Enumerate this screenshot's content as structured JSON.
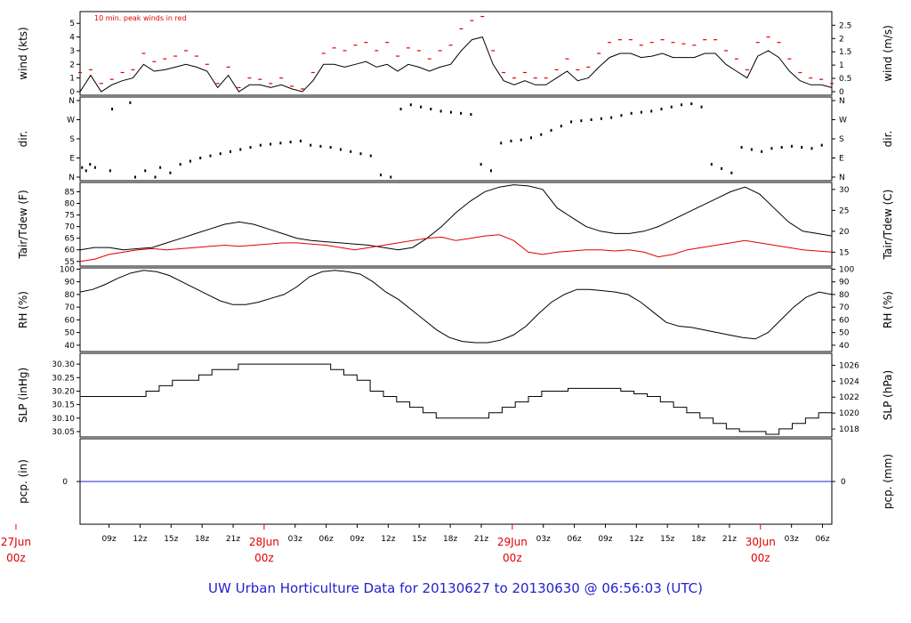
{
  "title": "UW Urban Horticulture Data for 20130627  to  20130630 @ 06:56:03  (UTC)",
  "colors": {
    "black": "#000000",
    "red": "#e00000",
    "blue": "#2222cc",
    "axis": "#000000"
  },
  "chart_data": {
    "type": "line",
    "x_range_hours": [
      0,
      75
    ],
    "time_axis": {
      "hour_ticks": [
        "09z",
        "12z",
        "15z",
        "18z",
        "21z",
        "03z",
        "06z",
        "09z",
        "12z",
        "15z",
        "18z",
        "21z",
        "03z",
        "06z",
        "09z",
        "12z",
        "15z",
        "18z",
        "21z",
        "03z",
        "06z"
      ],
      "day_labels": [
        {
          "date": "27Jun",
          "hour": "00z"
        },
        {
          "date": "28Jun",
          "hour": "00z"
        },
        {
          "date": "29Jun",
          "hour": "00z"
        },
        {
          "date": "30Jun",
          "hour": "00z"
        }
      ]
    },
    "panels": {
      "wind": {
        "ylabel_left": "wind (kts)",
        "ylabel_right": "wind (m/s)",
        "note": "10 min. peak winds in red",
        "ylim_left": [
          0,
          5.6
        ],
        "ticks_left": [
          "0",
          "1",
          "2",
          "3",
          "4",
          "5"
        ],
        "ylim_right": [
          0,
          2.88
        ],
        "ticks_right": [
          "0",
          "0.5",
          "1",
          "1.5",
          "2",
          "2.5"
        ],
        "series": [
          {
            "color": "black",
            "values": [
              0,
              1.2,
              0,
              0.5,
              0.8,
              1.0,
              2.0,
              1.5,
              1.6,
              1.8,
              2.0,
              1.8,
              1.5,
              0.3,
              1.2,
              0,
              0.5,
              0.5,
              0.3,
              0.5,
              0.2,
              0,
              0.8,
              2.0,
              2.0,
              1.8,
              2.0,
              2.2,
              1.8,
              2.0,
              1.5,
              2.0,
              1.8,
              1.5,
              1.8,
              2.0,
              3.0,
              3.8,
              4.0,
              2.0,
              0.8,
              0.5,
              0.8,
              0.5,
              0.5,
              1.0,
              1.5,
              0.8,
              1.0,
              1.8,
              2.5,
              2.8,
              2.8,
              2.5,
              2.6,
              2.8,
              2.5,
              2.5,
              2.5,
              2.8,
              2.8,
              2.0,
              1.5,
              1.0,
              2.6,
              3.0,
              2.5,
              1.5,
              0.8,
              0.5,
              0.5,
              0.3
            ]
          },
          {
            "color": "red",
            "values": [
              1.4,
              1.6,
              0.6,
              0.9,
              1.4,
              1.6,
              2.8,
              2.2,
              2.4,
              2.6,
              3.0,
              2.6,
              2.0,
              0.6,
              1.8,
              0.3,
              1.0,
              0.9,
              0.6,
              1.0,
              0.4,
              0.2,
              1.4,
              2.8,
              3.2,
              3.0,
              3.4,
              3.6,
              3.0,
              3.6,
              2.6,
              3.2,
              3.0,
              2.4,
              3.0,
              3.4,
              4.6,
              5.2,
              5.5,
              3.0,
              1.4,
              1.0,
              1.4,
              1.0,
              1.0,
              1.6,
              2.4,
              1.6,
              1.8,
              2.8,
              3.6,
              3.8,
              3.8,
              3.4,
              3.6,
              3.8,
              3.6,
              3.5,
              3.4,
              3.8,
              3.8,
              3.0,
              2.4,
              1.6,
              3.6,
              4.0,
              3.6,
              2.4,
              1.4,
              1.0,
              0.9,
              0.6
            ]
          }
        ]
      },
      "dir": {
        "ylabel": "dir.",
        "tick_labels": [
          "N",
          "E",
          "S",
          "W",
          "N"
        ],
        "ylim": [
          0,
          360
        ],
        "points_deg": [
          [
            0.2,
            45
          ],
          [
            0.6,
            30
          ],
          [
            1.0,
            60
          ],
          [
            1.5,
            45
          ],
          [
            3.0,
            30
          ],
          [
            3.2,
            320
          ],
          [
            5.0,
            350
          ],
          [
            5.5,
            0
          ],
          [
            6.5,
            30
          ],
          [
            7.5,
            0
          ],
          [
            8.0,
            45
          ],
          [
            9.0,
            20
          ],
          [
            10.0,
            60
          ],
          [
            11.0,
            75
          ],
          [
            12.0,
            90
          ],
          [
            13.0,
            100
          ],
          [
            14.0,
            110
          ],
          [
            15.0,
            120
          ],
          [
            16.0,
            130
          ],
          [
            17.0,
            140
          ],
          [
            18.0,
            150
          ],
          [
            19.0,
            155
          ],
          [
            20.0,
            160
          ],
          [
            21.0,
            165
          ],
          [
            22.0,
            170
          ],
          [
            23.0,
            150
          ],
          [
            24.0,
            145
          ],
          [
            25.0,
            140
          ],
          [
            26.0,
            130
          ],
          [
            27.0,
            120
          ],
          [
            28.0,
            110
          ],
          [
            29.0,
            100
          ],
          [
            30.0,
            10
          ],
          [
            31.0,
            0
          ],
          [
            32.0,
            320
          ],
          [
            33.0,
            340
          ],
          [
            34.0,
            330
          ],
          [
            35.0,
            320
          ],
          [
            36.0,
            310
          ],
          [
            37.0,
            305
          ],
          [
            38.0,
            300
          ],
          [
            39.0,
            295
          ],
          [
            40.0,
            60
          ],
          [
            41.0,
            30
          ],
          [
            42.0,
            160
          ],
          [
            43.0,
            170
          ],
          [
            44.0,
            175
          ],
          [
            45.0,
            185
          ],
          [
            46.0,
            200
          ],
          [
            47.0,
            220
          ],
          [
            48.0,
            240
          ],
          [
            49.0,
            260
          ],
          [
            50.0,
            265
          ],
          [
            51.0,
            270
          ],
          [
            52.0,
            275
          ],
          [
            53.0,
            280
          ],
          [
            54.0,
            290
          ],
          [
            55.0,
            300
          ],
          [
            56.0,
            305
          ],
          [
            57.0,
            310
          ],
          [
            58.0,
            320
          ],
          [
            59.0,
            330
          ],
          [
            60.0,
            340
          ],
          [
            61.0,
            345
          ],
          [
            62.0,
            330
          ],
          [
            63.0,
            60
          ],
          [
            64.0,
            40
          ],
          [
            65.0,
            20
          ],
          [
            66.0,
            140
          ],
          [
            67.0,
            130
          ],
          [
            68.0,
            120
          ],
          [
            69.0,
            135
          ],
          [
            70.0,
            140
          ],
          [
            71.0,
            145
          ],
          [
            72.0,
            140
          ],
          [
            73.0,
            135
          ],
          [
            74.0,
            150
          ]
        ]
      },
      "temp": {
        "ylabel_left": "Tair/Tdew (F)",
        "ylabel_right": "Tair/Tdew (C)",
        "ylim_left": [
          53,
          89
        ],
        "ticks_left": [
          "55",
          "60",
          "65",
          "70",
          "75",
          "80",
          "85"
        ],
        "ylim_right": [
          11.67,
          31.67
        ],
        "ticks_right": [
          "15",
          "20",
          "25",
          "30"
        ],
        "series": [
          {
            "name": "Tair",
            "color": "black",
            "values": [
              60,
              61,
              61,
              60,
              60.5,
              61,
              63,
              65,
              67,
              69,
              71,
              72,
              71,
              69,
              67,
              65,
              64,
              63.5,
              63,
              62.5,
              62,
              61,
              60,
              61,
              65,
              70,
              76,
              81,
              85,
              87,
              88,
              87.5,
              86,
              78,
              74,
              70,
              68,
              67,
              67,
              68,
              70,
              73,
              76,
              79,
              82,
              85,
              87,
              84,
              78,
              72,
              68,
              67,
              66
            ]
          },
          {
            "name": "Tdew",
            "color": "red",
            "values": [
              55,
              56,
              58,
              59,
              60,
              60.5,
              60,
              60.5,
              61,
              61.5,
              62,
              61.5,
              62,
              62.5,
              63,
              63,
              62.5,
              62,
              61,
              60,
              61,
              62,
              63,
              64,
              65,
              65.5,
              64,
              65,
              66,
              66.5,
              64,
              59,
              58,
              59,
              59.5,
              60,
              60,
              59.5,
              60,
              59,
              57,
              58,
              60,
              61,
              62,
              63,
              64,
              63,
              62,
              61,
              60,
              59.5,
              59
            ]
          }
        ]
      },
      "rh": {
        "ylabel_left": "RH (%)",
        "ylabel_right": "RH (%)",
        "ylim": [
          35,
          101
        ],
        "ticks_left": [
          "40",
          "50",
          "60",
          "70",
          "80",
          "90",
          "100"
        ],
        "ticks_right": [
          "40",
          "50",
          "60",
          "70",
          "80",
          "90",
          "100"
        ],
        "series": [
          {
            "color": "black",
            "values": [
              82,
              84,
              88,
              93,
              97,
              99,
              98,
              95,
              90,
              85,
              80,
              75,
              72,
              72,
              74,
              77,
              80,
              86,
              94,
              98,
              99,
              98,
              96,
              90,
              82,
              76,
              68,
              60,
              52,
              46,
              43,
              42,
              42,
              44,
              48,
              55,
              65,
              74,
              80,
              84,
              84,
              83,
              82,
              80,
              74,
              66,
              58,
              55,
              54,
              52,
              50,
              48,
              46,
              45,
              50,
              60,
              70,
              78,
              82,
              80
            ]
          }
        ]
      },
      "slp": {
        "ylabel_left": "SLP (inHg)",
        "ylabel_right": "SLP (hPa)",
        "ylim_left": [
          30.03,
          30.34
        ],
        "ticks_left": [
          "30.05",
          "30.10",
          "30.15",
          "30.20",
          "30.25",
          "30.30"
        ],
        "ylim_right": [
          1017,
          1027.5
        ],
        "ticks_right": [
          "1018",
          "1020",
          "1022",
          "1024",
          "1026"
        ],
        "series": [
          {
            "color": "black",
            "values": [
              30.18,
              30.18,
              30.18,
              30.18,
              30.18,
              30.2,
              30.22,
              30.24,
              30.24,
              30.26,
              30.28,
              30.28,
              30.3,
              30.3,
              30.3,
              30.3,
              30.3,
              30.3,
              30.3,
              30.28,
              30.26,
              30.24,
              30.2,
              30.18,
              30.16,
              30.14,
              30.12,
              30.1,
              30.1,
              30.1,
              30.1,
              30.12,
              30.14,
              30.16,
              30.18,
              30.2,
              30.2,
              30.21,
              30.21,
              30.21,
              30.21,
              30.2,
              30.19,
              30.18,
              30.16,
              30.14,
              30.12,
              30.1,
              30.08,
              30.06,
              30.05,
              30.05,
              30.04,
              30.06,
              30.08,
              30.1,
              30.12,
              30.12
            ]
          }
        ]
      },
      "pcp": {
        "ylabel_left": "pcp. (in)",
        "ylabel_right": "pcp. (mm)",
        "tick_left": "0",
        "tick_right": "0",
        "series": [
          {
            "color": "blue",
            "values": [
              0,
              0
            ]
          }
        ]
      }
    }
  }
}
